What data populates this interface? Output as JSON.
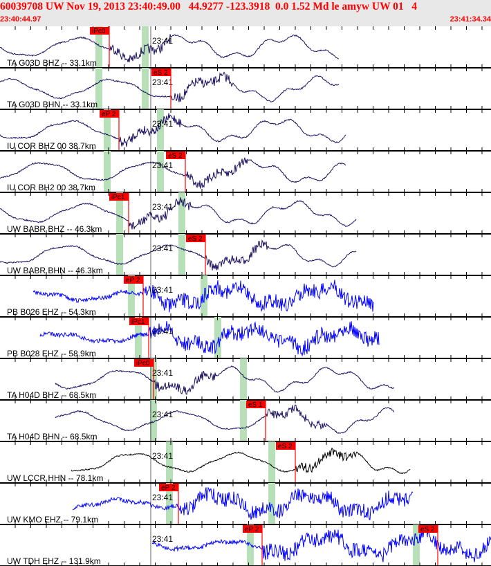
{
  "header": {
    "title": "60039708 UW Nov 19, 2013 23:40:49.00   44.9277 -123.3918  0.0 1.52 Md le amyw UW 01   4",
    "start_time": "23:40:44.97",
    "end_time": "23:41:34.34"
  },
  "minute_label": "23:41",
  "colors": {
    "pick": "#ff0000",
    "window": "#b8e0b8",
    "navy": "#1a1060",
    "blue": "#0000ff",
    "black": "#000000"
  },
  "traces": [
    {
      "label": "TA G03D BHZ -- 33.1km",
      "color": "navy",
      "picks": [
        {
          "label": "iPc0"
        }
      ]
    },
    {
      "label": "TA G03D BHN -- 33.1km",
      "color": "navy",
      "picks": [
        {
          "label": "eS 2"
        }
      ]
    },
    {
      "label": "IU COR BHZ 00 38.7km",
      "color": "navy",
      "picks": [
        {
          "label": "eP 2"
        }
      ]
    },
    {
      "label": "IU COR BH2 00 38.7km",
      "color": "navy",
      "picks": [
        {
          "label": "eS 2"
        }
      ]
    },
    {
      "label": "UW BABR BHZ -- 46.3km",
      "color": "navy",
      "picks": [
        {
          "label": "iPc1"
        }
      ]
    },
    {
      "label": "UW BABR BHN -- 46.3km",
      "color": "navy",
      "picks": [
        {
          "label": "eS 2"
        }
      ]
    },
    {
      "label": "PB B026 EHZ -- 54.3km",
      "color": "blue",
      "picks": [
        {
          "label": "eP 2"
        }
      ]
    },
    {
      "label": "PB B028 EHZ -- 58.9km",
      "color": "blue",
      "picks": [
        {
          "label": "iPc1"
        }
      ]
    },
    {
      "label": "TA H04D BHZ -- 68.5km",
      "color": "navy",
      "picks": [
        {
          "label": "iPc0"
        }
      ]
    },
    {
      "label": "TA H04D BHN -- 68.5km",
      "color": "navy",
      "picks": [
        {
          "label": "eS 1"
        }
      ]
    },
    {
      "label": "UW LCCR HHN -- 78.1km",
      "color": "black",
      "picks": [
        {
          "label": "eS 2"
        }
      ]
    },
    {
      "label": "UW KMO EHZ -- 79.1km",
      "color": "blue",
      "picks": [
        {
          "label": "eP 2"
        }
      ]
    },
    {
      "label": "UW TDH EHZ -- 131.9km",
      "color": "blue",
      "picks": [
        {
          "label": "eP 2"
        },
        {
          "label": "eS 2"
        }
      ]
    }
  ]
}
